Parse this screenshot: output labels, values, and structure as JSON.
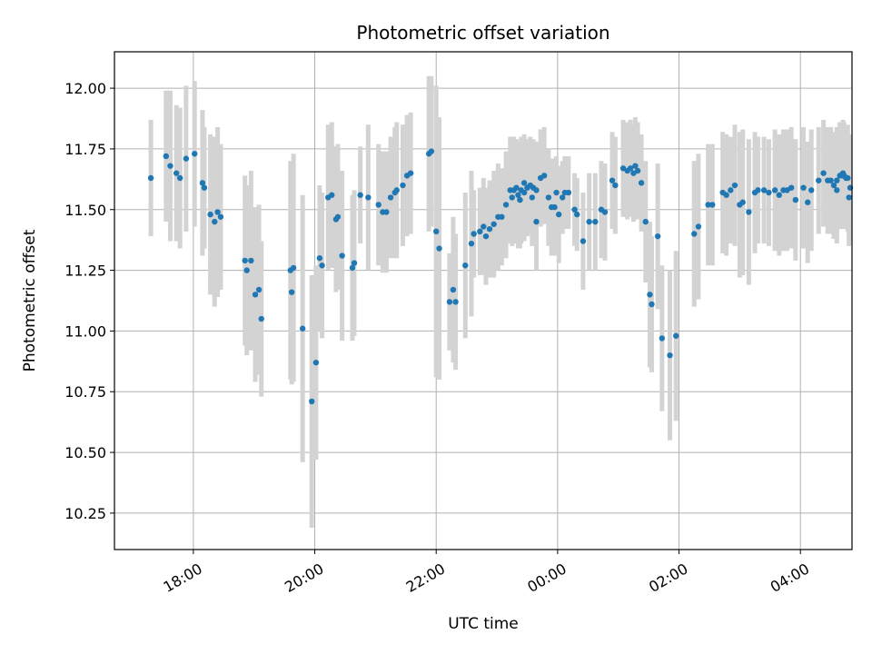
{
  "chart_data": {
    "type": "scatter",
    "title": "Photometric offset variation",
    "xlabel": "UTC time",
    "ylabel": "Photometric offset",
    "x_unit": "hours since 00:00 UTC",
    "xlim": [
      -7.3,
      4.85
    ],
    "ylim": [
      10.1,
      12.15
    ],
    "x_ticks": [
      {
        "value": -6,
        "label": "18:00"
      },
      {
        "value": -4,
        "label": "20:00"
      },
      {
        "value": -2,
        "label": "22:00"
      },
      {
        "value": 0,
        "label": "00:00"
      },
      {
        "value": 2,
        "label": "02:00"
      },
      {
        "value": 4,
        "label": "04:00"
      }
    ],
    "y_ticks": [
      {
        "value": 10.25,
        "label": "10.25"
      },
      {
        "value": 10.5,
        "label": "10.50"
      },
      {
        "value": 10.75,
        "label": "10.75"
      },
      {
        "value": 11.0,
        "label": "11.00"
      },
      {
        "value": 11.25,
        "label": "11.25"
      },
      {
        "value": 11.5,
        "label": "11.50"
      },
      {
        "value": 11.75,
        "label": "11.75"
      },
      {
        "value": 12.0,
        "label": "12.00"
      }
    ],
    "grid": true,
    "colors": {
      "points": "#1f77b4",
      "error_bars": "#d3d3d3",
      "grid": "#b0b0b0"
    },
    "points": [
      [
        -6.7,
        11.63,
        0.24
      ],
      [
        -6.45,
        11.72,
        0.27
      ],
      [
        -6.38,
        11.68,
        0.31
      ],
      [
        -6.28,
        11.65,
        0.28
      ],
      [
        -6.22,
        11.63,
        0.29
      ],
      [
        -6.12,
        11.71,
        0.3
      ],
      [
        -5.98,
        11.73,
        0.3
      ],
      [
        -5.85,
        11.61,
        0.3
      ],
      [
        -5.82,
        11.59,
        0.25
      ],
      [
        -5.72,
        11.48,
        0.33
      ],
      [
        -5.65,
        11.45,
        0.35
      ],
      [
        -5.6,
        11.49,
        0.35
      ],
      [
        -5.55,
        11.47,
        0.3
      ],
      [
        -5.15,
        11.29,
        0.35
      ],
      [
        -5.12,
        11.25,
        0.35
      ],
      [
        -5.05,
        11.29,
        0.37
      ],
      [
        -4.98,
        11.15,
        0.36
      ],
      [
        -4.92,
        11.17,
        0.35
      ],
      [
        -4.88,
        11.05,
        0.32
      ],
      [
        -4.4,
        11.25,
        0.45
      ],
      [
        -4.35,
        11.26,
        0.47
      ],
      [
        -4.38,
        11.16,
        0.38
      ],
      [
        -4.2,
        11.01,
        0.55
      ],
      [
        -4.05,
        10.71,
        0.52
      ],
      [
        -3.98,
        10.87,
        0.4
      ],
      [
        -3.92,
        11.3,
        0.3
      ],
      [
        -3.88,
        11.27,
        0.3
      ],
      [
        -3.78,
        11.55,
        0.3
      ],
      [
        -3.72,
        11.56,
        0.3
      ],
      [
        -3.65,
        11.46,
        0.3
      ],
      [
        -3.62,
        11.47,
        0.3
      ],
      [
        -3.55,
        11.31,
        0.35
      ],
      [
        -3.38,
        11.26,
        0.3
      ],
      [
        -3.35,
        11.28,
        0.3
      ],
      [
        -3.25,
        11.56,
        0.2
      ],
      [
        -3.12,
        11.55,
        0.3
      ],
      [
        -2.95,
        11.52,
        0.25
      ],
      [
        -2.88,
        11.49,
        0.25
      ],
      [
        -2.82,
        11.49,
        0.25
      ],
      [
        -2.75,
        11.55,
        0.25
      ],
      [
        -2.68,
        11.57,
        0.27
      ],
      [
        -2.65,
        11.58,
        0.28
      ],
      [
        -2.55,
        11.6,
        0.25
      ],
      [
        -2.48,
        11.64,
        0.25
      ],
      [
        -2.42,
        11.65,
        0.25
      ],
      [
        -2.12,
        11.73,
        0.32
      ],
      [
        -2.08,
        11.74,
        0.31
      ],
      [
        -2.0,
        11.41,
        0.6
      ],
      [
        -1.95,
        11.34,
        0.54
      ],
      [
        -1.78,
        11.12,
        0.2
      ],
      [
        -1.68,
        11.12,
        0.28
      ],
      [
        -1.72,
        11.17,
        0.3
      ],
      [
        -1.52,
        11.27,
        0.3
      ],
      [
        -1.42,
        11.36,
        0.3
      ],
      [
        -1.38,
        11.4,
        0.18
      ],
      [
        -1.28,
        11.41,
        0.18
      ],
      [
        -1.22,
        11.43,
        0.2
      ],
      [
        -1.18,
        11.39,
        0.2
      ],
      [
        -1.12,
        11.42,
        0.2
      ],
      [
        -1.05,
        11.44,
        0.22
      ],
      [
        -0.98,
        11.47,
        0.22
      ],
      [
        -0.92,
        11.47,
        0.2
      ],
      [
        -0.85,
        11.52,
        0.22
      ],
      [
        -0.78,
        11.58,
        0.22
      ],
      [
        -0.72,
        11.58,
        0.22
      ],
      [
        -0.65,
        11.56,
        0.22
      ],
      [
        -0.6,
        11.58,
        0.22
      ],
      [
        -0.55,
        11.61,
        0.2
      ],
      [
        -0.5,
        11.59,
        0.2
      ],
      [
        -0.45,
        11.6,
        0.2
      ],
      [
        -0.4,
        11.59,
        0.2
      ],
      [
        -0.35,
        11.58,
        0.2
      ],
      [
        -0.28,
        11.63,
        0.2
      ],
      [
        -0.22,
        11.64,
        0.2
      ],
      [
        -0.15,
        11.55,
        0.2
      ],
      [
        -0.1,
        11.51,
        0.2
      ],
      [
        -0.05,
        11.51,
        0.2
      ],
      [
        0.02,
        11.48,
        0.2
      ],
      [
        -0.35,
        11.45,
        0.2
      ],
      [
        -0.42,
        11.55,
        0.2
      ],
      [
        -0.55,
        11.57,
        0.2
      ],
      [
        -0.62,
        11.54,
        0.2
      ],
      [
        -0.68,
        11.59,
        0.2
      ],
      [
        -0.75,
        11.55,
        0.2
      ],
      [
        -0.02,
        11.57,
        0.15
      ],
      [
        0.08,
        11.55,
        0.15
      ],
      [
        0.12,
        11.57,
        0.15
      ],
      [
        0.18,
        11.57,
        0.15
      ],
      [
        0.28,
        11.5,
        0.15
      ],
      [
        0.32,
        11.48,
        0.15
      ],
      [
        0.42,
        11.37,
        0.2
      ],
      [
        0.52,
        11.45,
        0.2
      ],
      [
        0.62,
        11.45,
        0.2
      ],
      [
        0.72,
        11.5,
        0.2
      ],
      [
        0.78,
        11.49,
        0.2
      ],
      [
        0.9,
        11.62,
        0.2
      ],
      [
        0.95,
        11.6,
        0.2
      ],
      [
        1.08,
        11.67,
        0.2
      ],
      [
        1.15,
        11.66,
        0.2
      ],
      [
        1.2,
        11.67,
        0.2
      ],
      [
        1.25,
        11.65,
        0.2
      ],
      [
        1.28,
        11.68,
        0.2
      ],
      [
        1.32,
        11.66,
        0.2
      ],
      [
        1.38,
        11.61,
        0.2
      ],
      [
        1.45,
        11.45,
        0.25
      ],
      [
        1.52,
        11.15,
        0.3
      ],
      [
        1.55,
        11.11,
        0.28
      ],
      [
        1.65,
        11.39,
        0.3
      ],
      [
        1.72,
        10.97,
        0.3
      ],
      [
        1.85,
        10.9,
        0.35
      ],
      [
        1.95,
        10.98,
        0.35
      ],
      [
        2.25,
        11.4,
        0.3
      ],
      [
        2.32,
        11.43,
        0.3
      ],
      [
        2.48,
        11.52,
        0.25
      ],
      [
        2.55,
        11.52,
        0.25
      ],
      [
        2.72,
        11.57,
        0.25
      ],
      [
        2.78,
        11.56,
        0.25
      ],
      [
        2.85,
        11.58,
        0.22
      ],
      [
        2.92,
        11.6,
        0.25
      ],
      [
        3.0,
        11.52,
        0.3
      ],
      [
        3.05,
        11.53,
        0.3
      ],
      [
        3.15,
        11.49,
        0.3
      ],
      [
        3.25,
        11.57,
        0.25
      ],
      [
        3.3,
        11.58,
        0.22
      ],
      [
        3.4,
        11.58,
        0.22
      ],
      [
        3.48,
        11.57,
        0.22
      ],
      [
        3.58,
        11.58,
        0.25
      ],
      [
        3.65,
        11.56,
        0.25
      ],
      [
        3.72,
        11.58,
        0.25
      ],
      [
        3.78,
        11.58,
        0.25
      ],
      [
        3.85,
        11.59,
        0.25
      ],
      [
        3.92,
        11.54,
        0.25
      ],
      [
        4.05,
        11.59,
        0.25
      ],
      [
        4.12,
        11.53,
        0.25
      ],
      [
        4.18,
        11.58,
        0.25
      ],
      [
        4.3,
        11.62,
        0.22
      ],
      [
        4.38,
        11.65,
        0.22
      ],
      [
        4.45,
        11.62,
        0.22
      ],
      [
        4.5,
        11.62,
        0.22
      ],
      [
        4.55,
        11.6,
        0.22
      ],
      [
        4.6,
        11.62,
        0.22
      ],
      [
        4.68,
        11.64,
        0.22
      ],
      [
        4.72,
        11.64,
        0.22
      ],
      [
        4.78,
        11.63,
        0.22
      ],
      [
        4.82,
        11.59,
        0.22
      ],
      [
        4.6,
        11.58,
        0.22
      ],
      [
        4.65,
        11.64,
        0.22
      ],
      [
        4.7,
        11.65,
        0.22
      ],
      [
        4.75,
        11.63,
        0.2
      ],
      [
        4.8,
        11.55,
        0.2
      ]
    ]
  }
}
